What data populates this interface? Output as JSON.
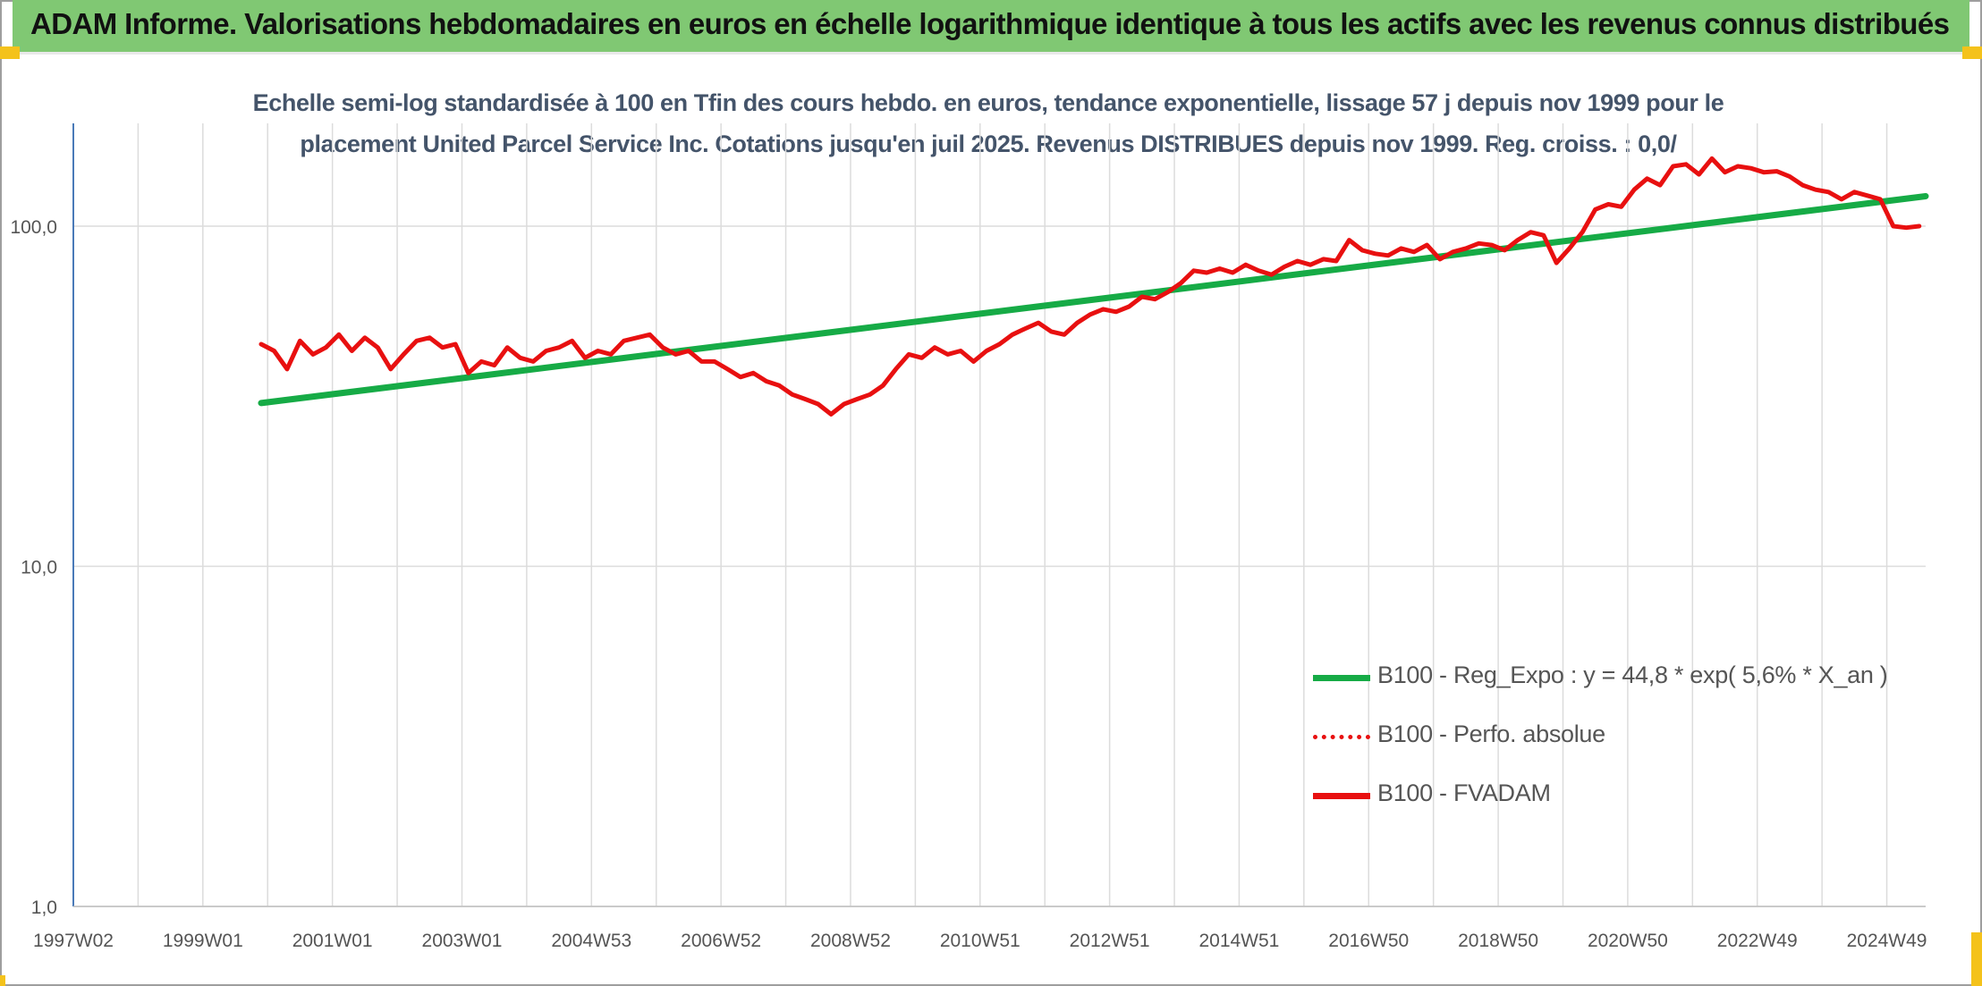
{
  "header": {
    "title": "ADAM Informe. Valorisations hebdomadaires en euros en échelle logarithmique identique à tous les actifs avec les revenus connus distribués"
  },
  "colors": {
    "banner": "#80c873",
    "accent_corner": "#f4c21b",
    "trend_line": "#16ab46",
    "price_line": "#e81010",
    "title_text": "#44546a"
  },
  "chart_data": {
    "type": "line",
    "title": "Echelle semi-log standardisée à 100 en Tfin des cours hebdo. en euros, tendance exponentielle, lissage 57 j depuis nov 1999 pour le placement United Parcel Service Inc. Cotations jusqu'en juil 2025. Revenus DISTRIBUES depuis nov 1999. Reg. croiss. : 0,0/",
    "title_lines": [
      "Echelle semi-log standardisée à 100 en Tfin des cours hebdo. en euros, tendance exponentielle, lissage 57 j depuis nov 1999 pour le",
      "placement United Parcel Service Inc. Cotations jusqu'en juil 2025. Revenus DISTRIBUES depuis nov 1999. Reg. croiss. : 0,0/"
    ],
    "y_scale": "log",
    "ylim": [
      1,
      200
    ],
    "y_ticks": [
      {
        "value": 1,
        "label": "1,0"
      },
      {
        "value": 10,
        "label": "10,0"
      },
      {
        "value": 100,
        "label": "100,0"
      }
    ],
    "xlim": [
      1997.0,
      2025.6
    ],
    "x_ticks": [
      {
        "value": 1997.0,
        "label": "1997W02"
      },
      {
        "value": 1999.0,
        "label": "1999W01"
      },
      {
        "value": 2001.0,
        "label": "2001W01"
      },
      {
        "value": 2003.0,
        "label": "2003W01"
      },
      {
        "value": 2005.0,
        "label": "2004W53"
      },
      {
        "value": 2007.0,
        "label": "2006W52"
      },
      {
        "value": 2009.0,
        "label": "2008W52"
      },
      {
        "value": 2011.0,
        "label": "2010W51"
      },
      {
        "value": 2013.0,
        "label": "2012W51"
      },
      {
        "value": 2015.0,
        "label": "2014W51"
      },
      {
        "value": 2017.0,
        "label": "2016W50"
      },
      {
        "value": 2019.0,
        "label": "2018W50"
      },
      {
        "value": 2021.0,
        "label": "2020W50"
      },
      {
        "value": 2023.0,
        "label": "2022W49"
      },
      {
        "value": 2025.0,
        "label": "2024W49"
      }
    ],
    "grid": {
      "vertical": true,
      "horizontal": true
    },
    "legend_position": "bottom-right",
    "series": [
      {
        "name": "B100 - Reg_Expo : y = 44,8 * exp( 5,6% *  X_an )",
        "style": "solid",
        "color": "#16ab46",
        "x": [
          1999.9,
          2025.6
        ],
        "y": [
          30.2,
          122.5
        ]
      },
      {
        "name": "B100 - Perfo. absolue",
        "style": "dotted",
        "color": "#e81010",
        "x": [],
        "y": []
      },
      {
        "name": "B100 - FVADAM",
        "style": "solid",
        "color": "#e81010",
        "x": [
          1999.9,
          2000.1,
          2000.3,
          2000.5,
          2000.7,
          2000.9,
          2001.1,
          2001.3,
          2001.5,
          2001.7,
          2001.9,
          2002.1,
          2002.3,
          2002.5,
          2002.7,
          2002.9,
          2003.1,
          2003.3,
          2003.5,
          2003.7,
          2003.9,
          2004.1,
          2004.3,
          2004.5,
          2004.7,
          2004.9,
          2005.1,
          2005.3,
          2005.5,
          2005.7,
          2005.9,
          2006.1,
          2006.3,
          2006.5,
          2006.7,
          2006.9,
          2007.1,
          2007.3,
          2007.5,
          2007.7,
          2007.9,
          2008.1,
          2008.3,
          2008.5,
          2008.7,
          2008.9,
          2009.1,
          2009.3,
          2009.5,
          2009.7,
          2009.9,
          2010.1,
          2010.3,
          2010.5,
          2010.7,
          2010.9,
          2011.1,
          2011.3,
          2011.5,
          2011.7,
          2011.9,
          2012.1,
          2012.3,
          2012.5,
          2012.7,
          2012.9,
          2013.1,
          2013.3,
          2013.5,
          2013.7,
          2013.9,
          2014.1,
          2014.3,
          2014.5,
          2014.7,
          2014.9,
          2015.1,
          2015.3,
          2015.5,
          2015.7,
          2015.9,
          2016.1,
          2016.3,
          2016.5,
          2016.7,
          2016.9,
          2017.1,
          2017.3,
          2017.5,
          2017.7,
          2017.9,
          2018.1,
          2018.3,
          2018.5,
          2018.7,
          2018.9,
          2019.1,
          2019.3,
          2019.5,
          2019.7,
          2019.9,
          2020.1,
          2020.3,
          2020.5,
          2020.7,
          2020.9,
          2021.1,
          2021.3,
          2021.5,
          2021.7,
          2021.9,
          2022.1,
          2022.3,
          2022.5,
          2022.7,
          2022.9,
          2023.1,
          2023.3,
          2023.5,
          2023.7,
          2023.9,
          2024.1,
          2024.3,
          2024.5,
          2024.7,
          2024.9,
          2025.1,
          2025.3,
          2025.5
        ],
        "y": [
          45,
          43,
          38,
          46,
          42,
          44,
          48,
          43,
          47,
          44,
          38,
          42,
          46,
          47,
          44,
          45,
          37,
          40,
          39,
          44,
          41,
          40,
          43,
          44,
          46,
          41,
          43,
          42,
          46,
          47,
          48,
          44,
          42,
          43,
          40,
          40,
          38,
          36,
          37,
          35,
          34,
          32,
          31,
          30,
          28,
          30,
          31,
          32,
          34,
          38,
          42,
          41,
          44,
          42,
          43,
          40,
          43,
          45,
          48,
          50,
          52,
          49,
          48,
          52,
          55,
          57,
          56,
          58,
          62,
          61,
          64,
          68,
          74,
          73,
          75,
          73,
          77,
          74,
          72,
          76,
          79,
          77,
          80,
          79,
          91,
          85,
          83,
          82,
          86,
          84,
          88,
          80,
          84,
          86,
          89,
          88,
          85,
          91,
          96,
          94,
          78,
          86,
          96,
          112,
          116,
          114,
          128,
          138,
          132,
          150,
          152,
          142,
          158,
          144,
          150,
          148,
          144,
          145,
          140,
          132,
          128,
          126,
          120,
          126,
          123,
          120,
          100,
          99,
          100
        ]
      }
    ]
  }
}
